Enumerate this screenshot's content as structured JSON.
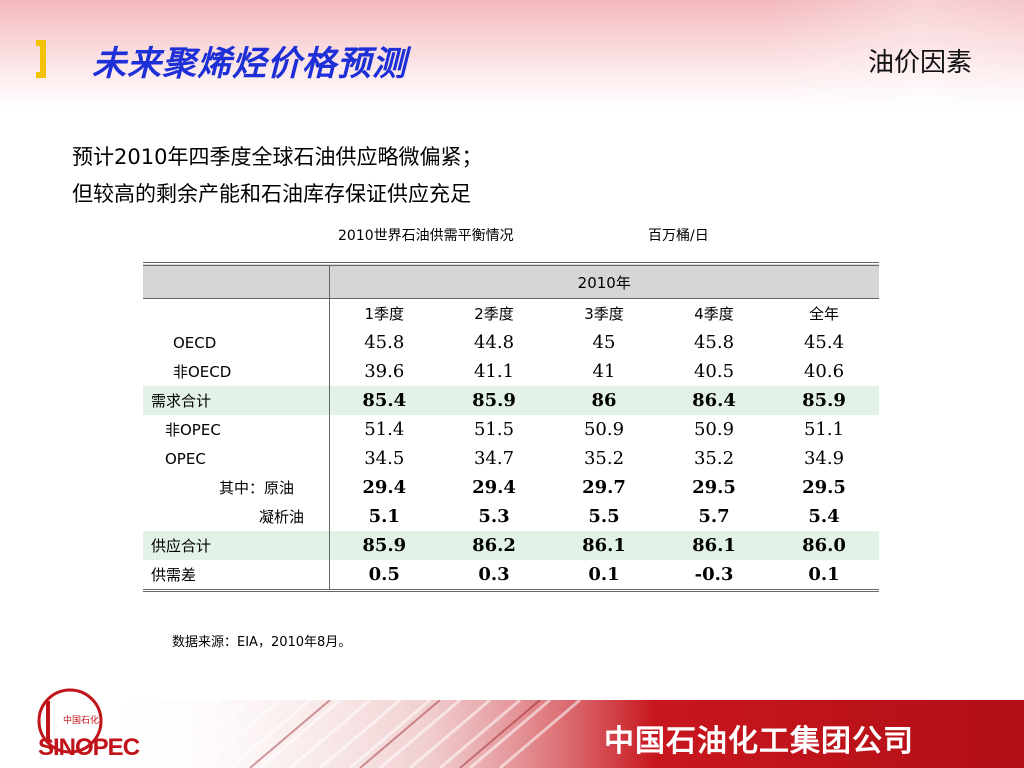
{
  "slide": {
    "title": "未来聚烯烃价格预测",
    "section": "油价因素",
    "bullets": [
      "预计2010年四季度全球石油供应略微偏紧；",
      "但较高的剩余产能和石油库存保证供应充足"
    ],
    "table_caption": "2010世界石油供需平衡情况",
    "table_unit": "百万桶/日",
    "source": "数据来源：EIA，2010年8月。",
    "company": "中国石油化工集团公司",
    "logo_text": "SINOPEC",
    "logo_cn": "中国石化"
  },
  "table": {
    "year_header": "2010年",
    "columns": [
      "1季度",
      "2季度",
      "3季度",
      "4季度",
      "全年"
    ],
    "rows": [
      {
        "label": "OECD",
        "values": [
          "45.8",
          "44.8",
          "45",
          "45.8",
          "45.4"
        ]
      },
      {
        "label": "非OECD",
        "values": [
          "39.6",
          "41.1",
          "41",
          "40.5",
          "40.6"
        ]
      },
      {
        "label": "需求合计",
        "values": [
          "85.4",
          "85.9",
          "86",
          "86.4",
          "85.9"
        ]
      },
      {
        "label": "非OPEC",
        "values": [
          "51.4",
          "51.5",
          "50.9",
          "50.9",
          "51.1"
        ]
      },
      {
        "label": "OPEC",
        "values": [
          "34.5",
          "34.7",
          "35.2",
          "35.2",
          "34.9"
        ]
      },
      {
        "label": "其中：原油",
        "values": [
          "29.4",
          "29.4",
          "29.7",
          "29.5",
          "29.5"
        ]
      },
      {
        "label": "凝析油",
        "values": [
          "5.1",
          "5.3",
          "5.5",
          "5.7",
          "5.4"
        ]
      },
      {
        "label": "供应合计",
        "values": [
          "85.9",
          "86.2",
          "86.1",
          "86.1",
          "86.0"
        ]
      },
      {
        "label": "供需差",
        "values": [
          "0.5",
          "0.3",
          "0.1",
          "-0.3",
          "0.1"
        ]
      }
    ]
  },
  "colors": {
    "title": "#1d2fd6",
    "accent_red": "#c0141a",
    "band_green": "#e3f2e6",
    "header_gray": "#d6d6d6",
    "bracket_yellow": "#f2c200"
  }
}
